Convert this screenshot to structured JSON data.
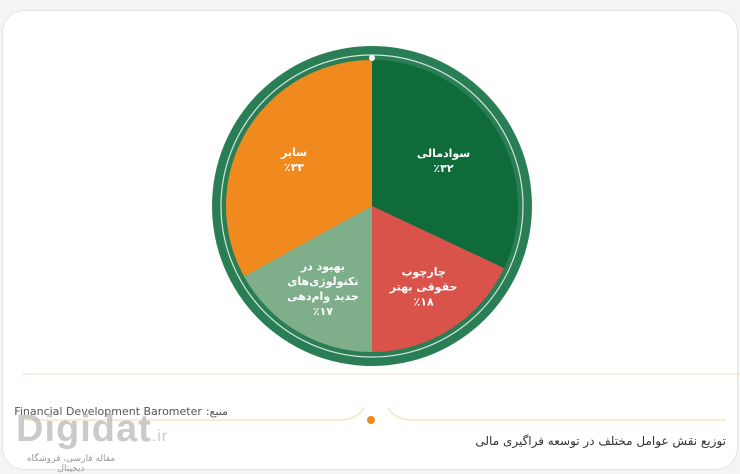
{
  "chart_data": {
    "type": "pie",
    "title": "",
    "slices": [
      {
        "label": "سوادمالی",
        "value": 32,
        "value_label": "٪۳۲",
        "color": "#106b3b"
      },
      {
        "label": "چارچوب حقوقی بهتر",
        "value": 18,
        "value_label": "٪۱۸",
        "color": "#d9534a"
      },
      {
        "label": "بهبود در تکنولوژی‌های جدید وام‌دهی",
        "value": 17,
        "value_label": "٪۱۷",
        "color": "#7fae8b"
      },
      {
        "label": "سایر",
        "value": 33,
        "value_label": "٪۳۳",
        "color": "#f0891e"
      }
    ],
    "ring_color": "#2a7e55"
  },
  "source": {
    "prefix": "منبع:",
    "text": "Financial Development Barometer"
  },
  "caption": "توزیع نقش عوامل مختلف در توسعه فراگیری مالی",
  "logo": {
    "word": "Digidat",
    "tld": ".ir",
    "tagline": "مقاله فارسی، فروشگاه دیجیتال"
  },
  "colors": {
    "divider_line": "#f2dfb9",
    "accent_dot": "#f0891e"
  }
}
